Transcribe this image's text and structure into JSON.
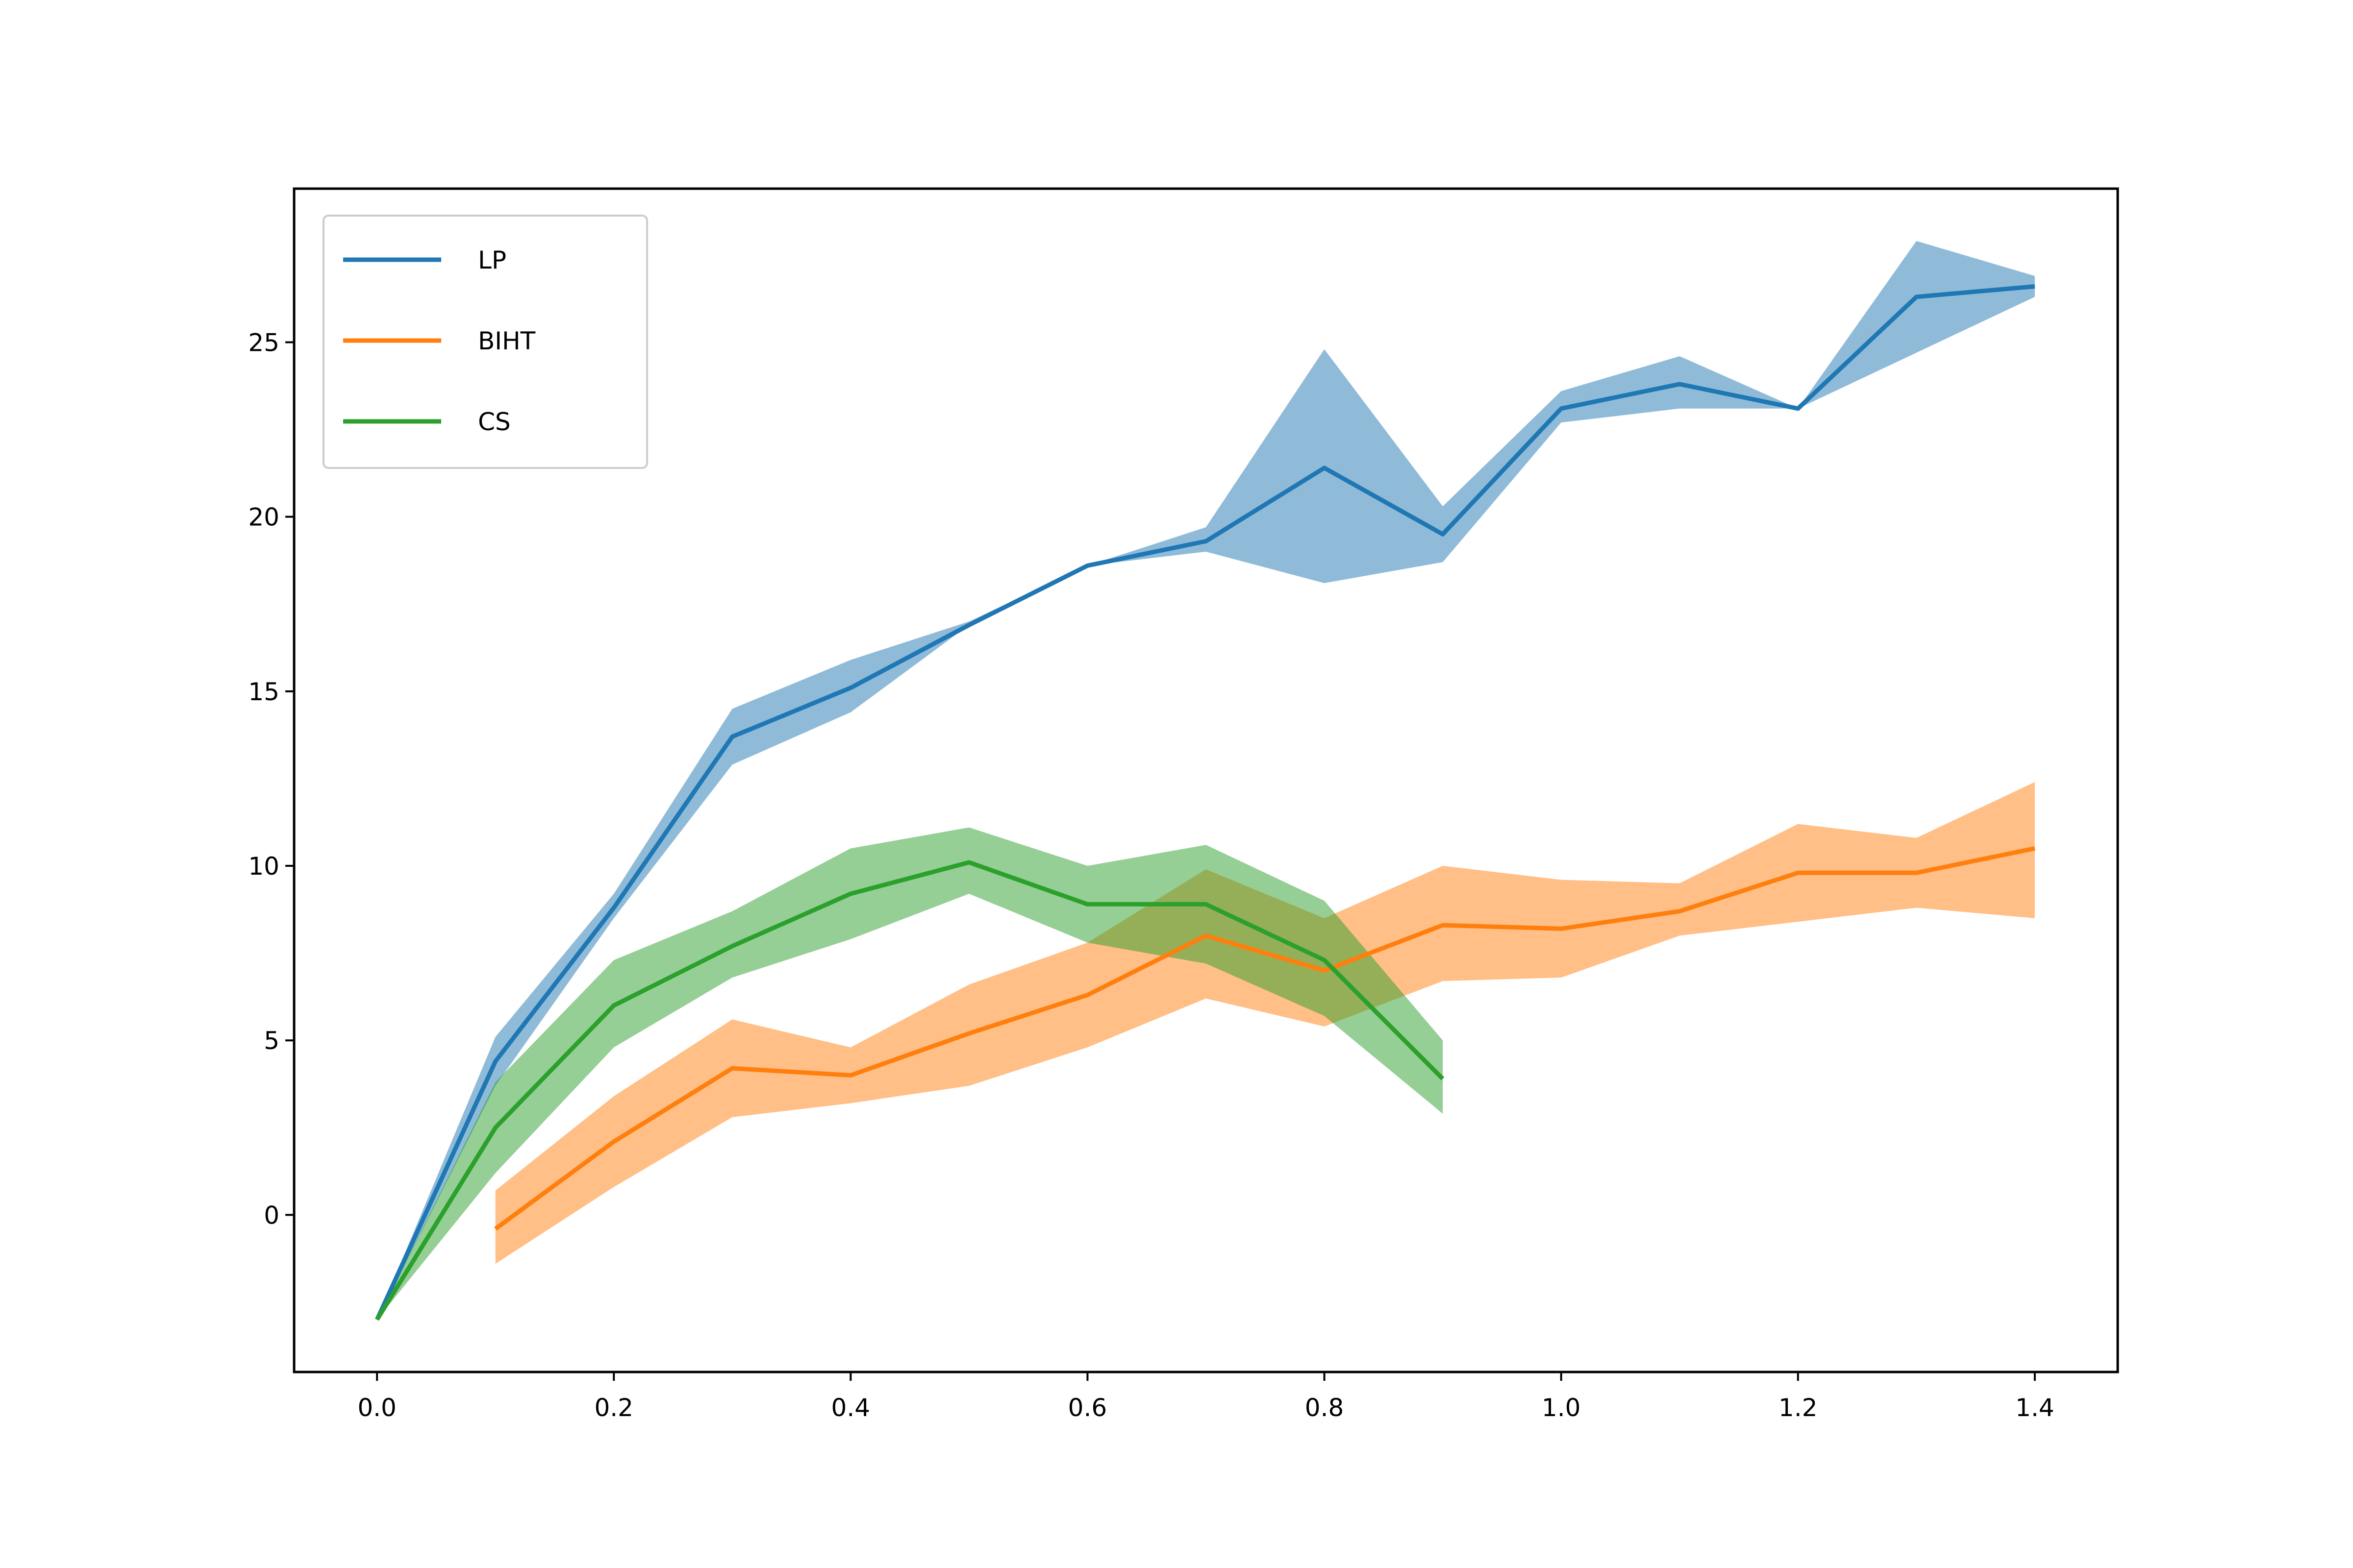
{
  "chart_data": {
    "type": "line",
    "title": "",
    "xlabel": "",
    "ylabel": "",
    "xlim": [
      -0.07,
      1.47
    ],
    "ylim": [
      -4.5,
      29.4
    ],
    "xticks": [
      0.0,
      0.2,
      0.4,
      0.6,
      0.8,
      1.0,
      1.2,
      1.4
    ],
    "xtick_labels": [
      "0.0",
      "0.2",
      "0.4",
      "0.6",
      "0.8",
      "1.0",
      "1.2",
      "1.4"
    ],
    "yticks": [
      0,
      5,
      10,
      15,
      20,
      25
    ],
    "ytick_labels": [
      "0",
      "5",
      "10",
      "15",
      "20",
      "25"
    ],
    "grid": false,
    "legend_position": "top-left",
    "series": [
      {
        "name": "LP",
        "color": "#1f77b4",
        "x": [
          0.0,
          0.1,
          0.2,
          0.3,
          0.4,
          0.5,
          0.6,
          0.7,
          0.8,
          0.9,
          1.0,
          1.1,
          1.2,
          1.3,
          1.4
        ],
        "y": [
          -3.0,
          4.4,
          8.8,
          13.7,
          15.1,
          16.9,
          18.6,
          19.3,
          21.4,
          19.5,
          23.1,
          23.8,
          23.1,
          26.3,
          26.6
        ],
        "lower": [
          -3.0,
          3.7,
          8.5,
          12.9,
          14.4,
          16.9,
          18.6,
          19.0,
          18.1,
          18.7,
          22.7,
          23.1,
          23.1,
          24.7,
          26.3
        ],
        "upper": [
          -3.0,
          5.1,
          9.2,
          14.5,
          15.9,
          17.0,
          18.6,
          19.7,
          24.8,
          20.3,
          23.6,
          24.6,
          23.1,
          27.9,
          26.9
        ]
      },
      {
        "name": "BIHT",
        "color": "#ff7f0e",
        "x": [
          0.1,
          0.2,
          0.3,
          0.4,
          0.5,
          0.6,
          0.7,
          0.8,
          0.9,
          1.0,
          1.1,
          1.2,
          1.3,
          1.4
        ],
        "y": [
          -0.4,
          2.1,
          4.2,
          4.0,
          5.2,
          6.3,
          8.0,
          7.0,
          8.3,
          8.2,
          8.7,
          9.8,
          9.8,
          10.5
        ],
        "lower": [
          -1.4,
          0.8,
          2.8,
          3.2,
          3.7,
          4.8,
          6.2,
          5.4,
          6.7,
          6.8,
          8.0,
          8.4,
          8.8,
          8.5
        ],
        "upper": [
          0.7,
          3.4,
          5.6,
          4.8,
          6.6,
          7.8,
          9.9,
          8.5,
          10.0,
          9.6,
          9.5,
          11.2,
          10.8,
          12.4
        ]
      },
      {
        "name": "CS",
        "color": "#2ca02c",
        "x": [
          0.0,
          0.1,
          0.2,
          0.3,
          0.4,
          0.5,
          0.6,
          0.7,
          0.8,
          0.9
        ],
        "y": [
          -3.0,
          2.5,
          6.0,
          7.7,
          9.2,
          10.1,
          8.9,
          8.9,
          7.3,
          3.9
        ],
        "lower": [
          -3.0,
          1.2,
          4.8,
          6.8,
          7.9,
          9.2,
          7.8,
          7.2,
          5.7,
          2.9
        ],
        "upper": [
          -3.0,
          3.8,
          7.3,
          8.7,
          10.5,
          11.1,
          10.0,
          10.6,
          9.0,
          5.0
        ]
      }
    ]
  }
}
